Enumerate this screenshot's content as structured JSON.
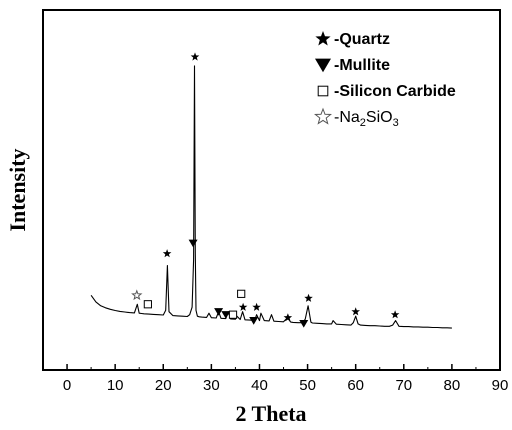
{
  "chart_data": {
    "type": "line",
    "xlabel": "2 Theta",
    "ylabel": "Intensity",
    "xlim": [
      -5,
      90
    ],
    "xticks": [
      0,
      10,
      20,
      30,
      40,
      50,
      60,
      70,
      80,
      90
    ],
    "ylim": [
      0,
      100
    ],
    "yticks_shown": false,
    "grid": false,
    "line_color": "#000000",
    "series": [
      {
        "x": [
          5.0,
          6.0,
          7.0,
          8.0,
          9.0,
          10.0,
          11.0,
          12.0,
          13.0,
          14.0,
          14.6,
          15.0,
          15.5,
          16.0,
          17.0,
          18.0,
          19.0,
          20.0,
          20.5,
          20.85,
          21.2,
          22.0,
          23.0,
          24.0,
          25.0,
          25.5,
          26.0,
          26.3,
          26.5,
          26.65,
          26.8,
          27.1,
          27.5,
          28.0,
          29.0,
          29.5,
          30.0,
          31.0,
          31.5,
          32.0,
          33.0,
          33.5,
          34.0,
          35.0,
          35.3,
          36.0,
          36.5,
          37.0,
          38.0,
          39.0,
          39.4,
          40.0,
          40.3,
          41.0,
          42.0,
          42.5,
          43.0,
          44.0,
          45.0,
          45.8,
          46.5,
          47.0,
          48.0,
          49.0,
          49.5,
          50.1,
          50.7,
          51.0,
          52.0,
          53.0,
          54.0,
          55.0,
          55.3,
          56.0,
          57.0,
          58.0,
          59.0,
          59.5,
          60.0,
          60.5,
          61.0,
          62.0,
          63.0,
          64.0,
          65.0,
          66.0,
          67.0,
          67.7,
          68.3,
          69.0,
          70.0,
          71.0,
          72.0,
          73.0,
          74.0,
          75.0,
          76.0,
          77.0,
          78.0,
          79.0,
          80.0
        ],
        "values": [
          16.0,
          13.8,
          12.5,
          11.8,
          11.3,
          10.9,
          10.6,
          10.4,
          10.2,
          10.1,
          13.0,
          10.0,
          9.9,
          9.8,
          9.7,
          9.6,
          9.5,
          9.4,
          11.0,
          26.0,
          10.5,
          9.2,
          9.1,
          9.0,
          8.9,
          9.5,
          12.0,
          28.0,
          93.0,
          30.0,
          11.0,
          9.0,
          8.8,
          8.7,
          8.6,
          10.0,
          8.5,
          8.4,
          10.5,
          8.3,
          8.2,
          10.5,
          8.1,
          8.0,
          9.0,
          7.9,
          10.5,
          7.8,
          7.7,
          7.6,
          9.5,
          7.5,
          10.0,
          7.5,
          7.4,
          9.5,
          7.3,
          7.2,
          7.1,
          8.5,
          7.0,
          6.9,
          6.8,
          6.8,
          8.0,
          12.5,
          7.0,
          6.7,
          6.6,
          6.5,
          6.4,
          6.4,
          7.5,
          6.3,
          6.2,
          6.1,
          6.0,
          6.8,
          9.0,
          6.4,
          6.0,
          5.9,
          5.8,
          5.8,
          5.7,
          5.6,
          5.6,
          6.0,
          7.5,
          5.6,
          5.5,
          5.5,
          5.4,
          5.4,
          5.3,
          5.3,
          5.2,
          5.2,
          5.1,
          5.1,
          5.0
        ]
      }
    ],
    "markers": [
      {
        "x": 26.6,
        "y": 96,
        "symbol": "star-filled"
      },
      {
        "x": 20.8,
        "y": 30,
        "symbol": "star-filled"
      },
      {
        "x": 14.5,
        "y": 16,
        "symbol": "star-open"
      },
      {
        "x": 16.8,
        "y": 13,
        "symbol": "square-open"
      },
      {
        "x": 26.2,
        "y": 33.5,
        "symbol": "triangle-down"
      },
      {
        "x": 31.5,
        "y": 10.5,
        "symbol": "triangle-down"
      },
      {
        "x": 33.0,
        "y": 9.5,
        "symbol": "triangle-down"
      },
      {
        "x": 34.5,
        "y": 9.5,
        "symbol": "square-open"
      },
      {
        "x": 36.2,
        "y": 16.5,
        "symbol": "square-open"
      },
      {
        "x": 36.6,
        "y": 12,
        "symbol": "star-filled"
      },
      {
        "x": 39.4,
        "y": 12,
        "symbol": "star-filled"
      },
      {
        "x": 38.8,
        "y": 7.5,
        "symbol": "triangle-down"
      },
      {
        "x": 45.9,
        "y": 8.5,
        "symbol": "star-filled"
      },
      {
        "x": 49.2,
        "y": 6.5,
        "symbol": "triangle-down"
      },
      {
        "x": 50.2,
        "y": 15,
        "symbol": "star-filled"
      },
      {
        "x": 60.0,
        "y": 10.5,
        "symbol": "star-filled"
      },
      {
        "x": 68.2,
        "y": 9.5,
        "symbol": "star-filled"
      }
    ],
    "legend": {
      "placement": "top-right",
      "entries": [
        {
          "symbol": "star-filled",
          "label": "-Quartz",
          "style": "bold"
        },
        {
          "symbol": "triangle-down",
          "label": "-Mullite",
          "style": "bold"
        },
        {
          "symbol": "square-open",
          "label": "-Silicon Carbide",
          "style": "bold"
        },
        {
          "symbol": "star-open",
          "label_parts": [
            "-Na",
            "2",
            "SiO",
            "3"
          ],
          "style": "plain"
        }
      ]
    }
  }
}
